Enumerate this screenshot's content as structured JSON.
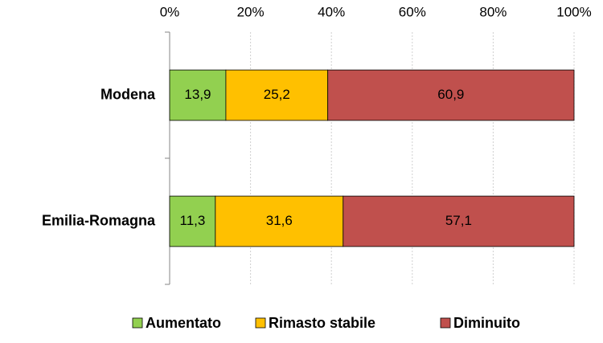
{
  "chart_data": {
    "type": "stacked-bar-horizontal",
    "categories": [
      "Modena",
      "Emilia-Romagna"
    ],
    "series": [
      {
        "name": "Aumentato",
        "color": "#92d050",
        "values": [
          13.9,
          11.3
        ],
        "value_labels": [
          "13,9",
          "11,3"
        ]
      },
      {
        "name": "Rimasto stabile",
        "color": "#ffc000",
        "values": [
          25.2,
          31.6
        ],
        "value_labels": [
          "25,2",
          "31,6"
        ]
      },
      {
        "name": "Diminuito",
        "color": "#c0504d",
        "values": [
          60.9,
          57.1
        ],
        "value_labels": [
          "60,9",
          "57,1"
        ]
      }
    ],
    "xlim": [
      0,
      100
    ],
    "xticks": [
      {
        "value": 0,
        "label": "0%"
      },
      {
        "value": 20,
        "label": "20%"
      },
      {
        "value": 40,
        "label": "40%"
      },
      {
        "value": 60,
        "label": "60%"
      },
      {
        "value": 80,
        "label": "80%"
      },
      {
        "value": 100,
        "label": "100%"
      }
    ],
    "grid": true,
    "legend": "bottom"
  }
}
